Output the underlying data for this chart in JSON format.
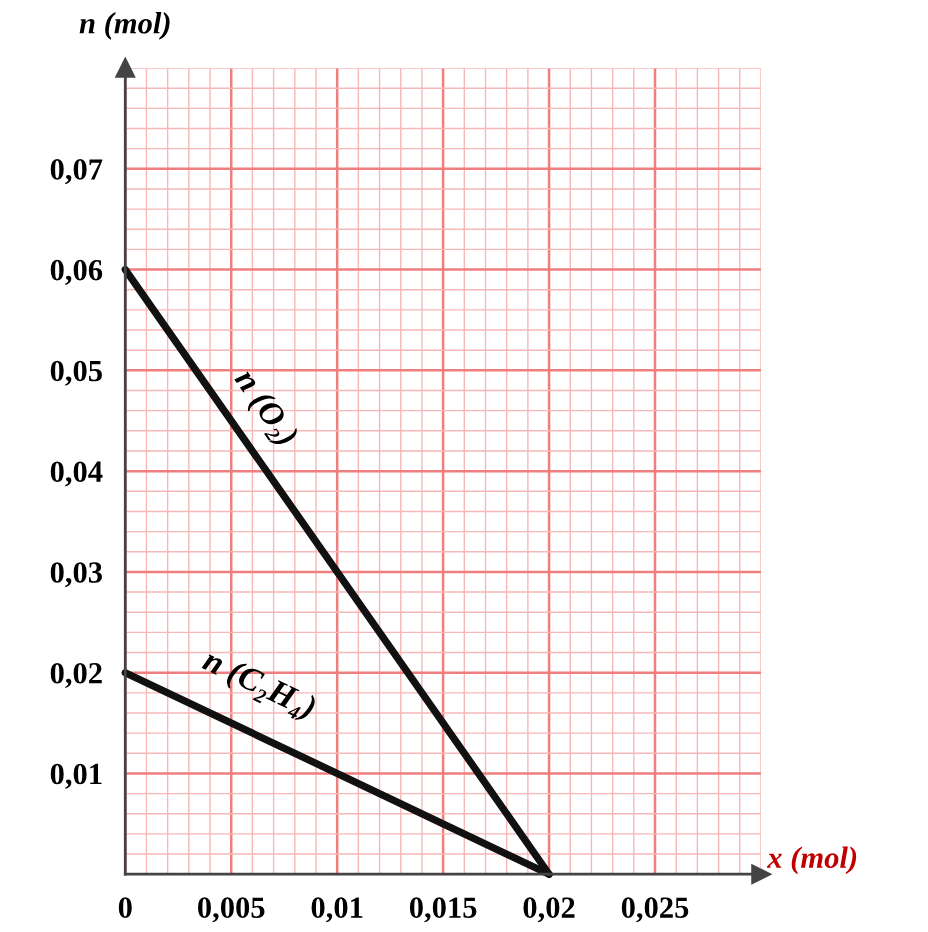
{
  "chart_data": {
    "type": "line",
    "xlabel": "x (mol)",
    "ylabel": "n (mol)",
    "x": [
      0,
      0.02
    ],
    "series": [
      {
        "name": "n (O₂)",
        "color": "#111111",
        "values": [
          0.06,
          0
        ]
      },
      {
        "name": "n (C₂H₄)",
        "color": "#111111",
        "values": [
          0.02,
          0
        ]
      }
    ],
    "xlim": [
      0,
      0.03
    ],
    "ylim": [
      0,
      0.08
    ],
    "xticks": [
      {
        "value": 0,
        "label": "0"
      },
      {
        "value": 0.001,
        "label": null
      },
      {
        "value": 0.002,
        "label": null
      },
      {
        "value": 0.003,
        "label": null
      },
      {
        "value": 0.004,
        "label": null
      },
      {
        "value": 0.005,
        "label": "0,005"
      },
      {
        "value": 0.006,
        "label": null
      },
      {
        "value": 0.007,
        "label": null
      },
      {
        "value": 0.008,
        "label": null
      },
      {
        "value": 0.009,
        "label": null
      },
      {
        "value": 0.01,
        "label": "0,01"
      },
      {
        "value": 0.011,
        "label": null
      },
      {
        "value": 0.012,
        "label": null
      },
      {
        "value": 0.013,
        "label": null
      },
      {
        "value": 0.014,
        "label": null
      },
      {
        "value": 0.015,
        "label": "0,015"
      },
      {
        "value": 0.016,
        "label": null
      },
      {
        "value": 0.017,
        "label": null
      },
      {
        "value": 0.018,
        "label": null
      },
      {
        "value": 0.019,
        "label": null
      },
      {
        "value": 0.02,
        "label": "0,02"
      },
      {
        "value": 0.021,
        "label": null
      },
      {
        "value": 0.022,
        "label": null
      },
      {
        "value": 0.023,
        "label": null
      },
      {
        "value": 0.024,
        "label": null
      },
      {
        "value": 0.025,
        "label": "0,025"
      },
      {
        "value": 0.026,
        "label": null
      },
      {
        "value": 0.027,
        "label": null
      },
      {
        "value": 0.028,
        "label": null
      },
      {
        "value": 0.029,
        "label": null
      },
      {
        "value": 0.03,
        "label": null
      }
    ],
    "yticks": [
      {
        "value": 0.002,
        "label": null
      },
      {
        "value": 0.004,
        "label": null
      },
      {
        "value": 0.006,
        "label": null
      },
      {
        "value": 0.008,
        "label": null
      },
      {
        "value": 0.01,
        "label": "0,01"
      },
      {
        "value": 0.012,
        "label": null
      },
      {
        "value": 0.014,
        "label": null
      },
      {
        "value": 0.016,
        "label": null
      },
      {
        "value": 0.018,
        "label": null
      },
      {
        "value": 0.02,
        "label": "0,02"
      },
      {
        "value": 0.022,
        "label": null
      },
      {
        "value": 0.024,
        "label": null
      },
      {
        "value": 0.026,
        "label": null
      },
      {
        "value": 0.028,
        "label": null
      },
      {
        "value": 0.03,
        "label": "0,03"
      },
      {
        "value": 0.032,
        "label": null
      },
      {
        "value": 0.034,
        "label": null
      },
      {
        "value": 0.036,
        "label": null
      },
      {
        "value": 0.038,
        "label": null
      },
      {
        "value": 0.04,
        "label": "0,04"
      },
      {
        "value": 0.042,
        "label": null
      },
      {
        "value": 0.044,
        "label": null
      },
      {
        "value": 0.046,
        "label": null
      },
      {
        "value": 0.048,
        "label": null
      },
      {
        "value": 0.05,
        "label": "0,05"
      },
      {
        "value": 0.052,
        "label": null
      },
      {
        "value": 0.054,
        "label": null
      },
      {
        "value": 0.056,
        "label": null
      },
      {
        "value": 0.058,
        "label": null
      },
      {
        "value": 0.06,
        "label": "0,06"
      },
      {
        "value": 0.062,
        "label": null
      },
      {
        "value": 0.064,
        "label": null
      },
      {
        "value": 0.066,
        "label": null
      },
      {
        "value": 0.068,
        "label": null
      },
      {
        "value": 0.07,
        "label": "0,07"
      },
      {
        "value": 0.072,
        "label": null
      },
      {
        "value": 0.074,
        "label": null
      },
      {
        "value": 0.076,
        "label": null
      },
      {
        "value": 0.078,
        "label": null
      },
      {
        "value": 0.08,
        "label": null
      }
    ],
    "grid": true,
    "legend": false,
    "marker": "none",
    "line_style": "solid"
  }
}
